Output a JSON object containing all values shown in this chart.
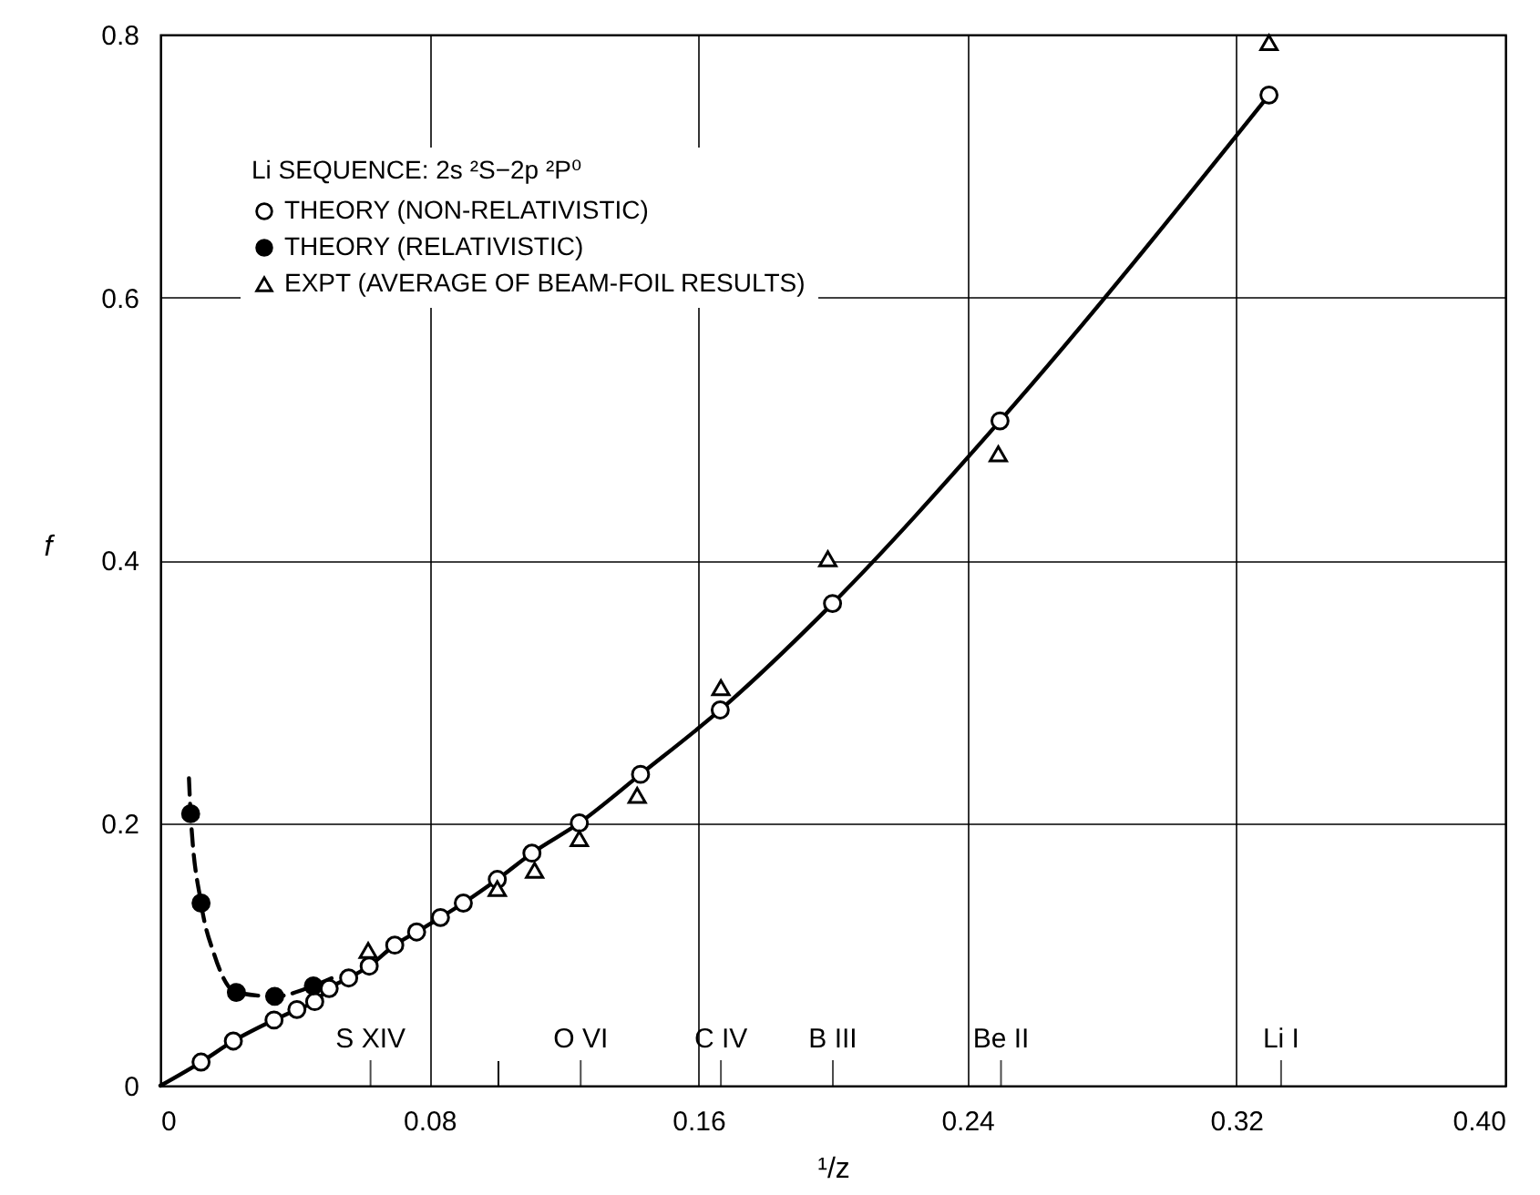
{
  "chart_data": {
    "type": "scatter",
    "xlabel": "¹/z",
    "ylabel": "f",
    "legend_title": "Li SEQUENCE: 2s ²S−2p ²P⁰",
    "xlim": [
      0,
      0.4
    ],
    "ylim": [
      0,
      0.8
    ],
    "xticks": [
      0,
      0.08,
      {
        "value": 0.1,
        "label": null
      },
      0.16,
      0.24,
      0.32,
      {
        "value": 0.4,
        "label": "0.40"
      }
    ],
    "ref_lines": [
      {
        "axis": "x",
        "value": 0.0625,
        "label": "S XIV"
      },
      {
        "axis": "x",
        "value": 0.125,
        "label": "O VI"
      },
      {
        "axis": "x",
        "value": 0.1667,
        "label": "C IV"
      },
      {
        "axis": "x",
        "value": 0.2,
        "label": "B III"
      },
      {
        "axis": "x",
        "value": 0.25,
        "label": "Be II"
      },
      {
        "axis": "x",
        "value": 0.3333,
        "label": "Li I"
      }
    ],
    "yticks": [
      0,
      0.2,
      0.4,
      0.6,
      0.8
    ],
    "grid": true,
    "legend": "top left",
    "series": [
      {
        "type": "line",
        "color": "#000000",
        "line_style": "solid",
        "marker": "none",
        "x": [
          0,
          0.0121,
          0.0217,
          0.0338,
          0.0406,
          0.0459,
          0.0502,
          0.056,
          0.0621,
          0.0697,
          0.0762,
          0.0833,
          0.0901,
          0.1002,
          0.1105,
          0.1246,
          0.1428,
          0.1665,
          0.1999,
          0.2497,
          0.3297
        ],
        "values": [
          0,
          0.018,
          0.034,
          0.05,
          0.058,
          0.064,
          0.074,
          0.082,
          0.091,
          0.107,
          0.117,
          0.128,
          0.139,
          0.157,
          0.177,
          0.2,
          0.237,
          0.286,
          0.367,
          0.506,
          0.754
        ]
      },
      {
        "type": "line",
        "color": "#000000",
        "line_style": "dashed",
        "marker": "none",
        "x": [
          0.0085,
          0.009,
          0.0121,
          0.016,
          0.0226,
          0.034,
          0.0455,
          0.052
        ],
        "values": [
          0.234,
          0.207,
          0.139,
          0.1,
          0.071,
          0.068,
          0.076,
          0.083
        ]
      },
      {
        "name": "THEORY (NON-RELATIVISTIC)",
        "marker": "circle",
        "color": "#ffffff",
        "x": [
          0.0121,
          0.0217,
          0.0338,
          0.0406,
          0.0459,
          0.0502,
          0.056,
          0.0621,
          0.0697,
          0.0762,
          0.0833,
          0.0901,
          0.1002,
          0.1105,
          0.1246,
          0.1428,
          0.1665,
          0.1999,
          0.2497,
          0.3297
        ],
        "values": [
          0.018,
          0.034,
          0.05,
          0.058,
          0.064,
          0.074,
          0.082,
          0.091,
          0.107,
          0.117,
          0.128,
          0.139,
          0.157,
          0.177,
          0.2,
          0.237,
          0.286,
          0.367,
          0.506,
          0.754
        ]
      },
      {
        "name": "THEORY (RELATIVISTIC)",
        "marker": "circle",
        "color": "#000000",
        "x": [
          0.009,
          0.0121,
          0.0226,
          0.034,
          0.0455
        ],
        "values": [
          0.207,
          0.139,
          0.071,
          0.068,
          0.076
        ]
      },
      {
        "name": "EXPT (AVERAGE OF BEAM-FOIL RESULTS)",
        "marker": "triangle",
        "color": "#ffffff",
        "x": [
          0.0618,
          0.1002,
          0.1113,
          0.1246,
          0.1418,
          0.1667,
          0.1985,
          0.2492,
          0.3297
        ],
        "values": [
          0.103,
          0.15,
          0.164,
          0.188,
          0.221,
          0.303,
          0.401,
          0.481,
          0.794
        ]
      }
    ]
  }
}
